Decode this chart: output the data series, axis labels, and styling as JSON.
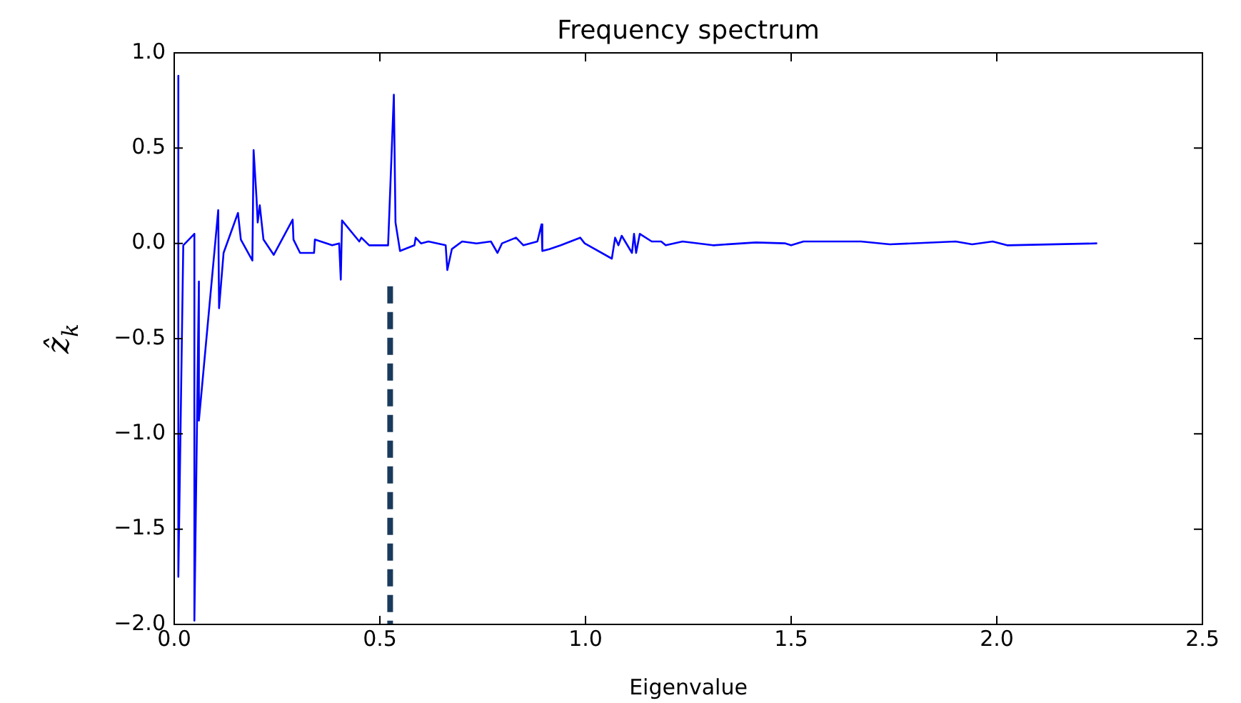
{
  "chart_data": {
    "type": "line",
    "title": "Frequency spectrum",
    "xlabel": "Eigenvalue",
    "ylabel": "ẑ$_{k}$",
    "xlim": [
      0,
      2.5
    ],
    "xticks": [
      {
        "value": 0,
        "label": "0.0"
      },
      0.5,
      {
        "value": 1,
        "label": "1.0"
      },
      1.5,
      {
        "value": 2,
        "label": "2.0"
      },
      2.5
    ],
    "ylim": [
      -2,
      1
    ],
    "yticks": [
      {
        "value": -2,
        "label": "−2.0"
      },
      {
        "value": -1.5,
        "label": "−1.5"
      },
      {
        "value": -1,
        "label": "−1.0"
      },
      {
        "value": -0.5,
        "label": "−0.5"
      },
      {
        "value": 0,
        "label": "0.0"
      },
      0.5,
      {
        "value": 1,
        "label": "1.0"
      }
    ],
    "grid": false,
    "legend": false,
    "series": [
      {
        "color": "#0000ff",
        "line_style": "solid",
        "x": [
          0.01,
          0.01,
          0.022,
          0.049,
          0.049,
          0.06,
          0.06,
          0.107,
          0.109,
          0.12,
          0.155,
          0.162,
          0.19,
          0.193,
          0.2,
          0.203,
          0.208,
          0.217,
          0.242,
          0.288,
          0.29,
          0.306,
          0.34,
          0.342,
          0.384,
          0.401,
          0.405,
          0.408,
          0.45,
          0.455,
          0.474,
          0.52,
          0.534,
          0.538,
          0.549,
          0.584,
          0.587,
          0.6,
          0.618,
          0.66,
          0.664,
          0.675,
          0.7,
          0.735,
          0.77,
          0.786,
          0.797,
          0.831,
          0.849,
          0.883,
          0.893,
          0.895,
          0.912,
          0.94,
          0.987,
          0.998,
          1.064,
          1.072,
          1.08,
          1.088,
          1.113,
          1.118,
          1.123,
          1.132,
          1.161,
          1.184,
          1.195,
          1.236,
          1.31,
          1.414,
          1.486,
          1.5,
          1.53,
          1.67,
          1.74,
          1.9,
          1.94,
          1.99,
          2.025,
          2.244
        ],
        "values": [
          0.88,
          -1.75,
          -0.01,
          0.05,
          -1.98,
          -0.2,
          -0.93,
          0.175,
          -0.34,
          -0.05,
          0.16,
          0.02,
          -0.09,
          0.49,
          0.24,
          0.11,
          0.2,
          0.02,
          -0.06,
          0.125,
          0.02,
          -0.05,
          -0.05,
          0.02,
          -0.01,
          0,
          -0.19,
          0.12,
          0.01,
          0.03,
          -0.01,
          -0.01,
          0.78,
          0.11,
          -0.04,
          -0.01,
          0.03,
          0,
          0.01,
          -0.01,
          -0.14,
          -0.03,
          0.01,
          0,
          0.01,
          -0.05,
          0,
          0.03,
          -0.01,
          0.01,
          0.1,
          -0.04,
          -0.03,
          -0.01,
          0.03,
          0,
          -0.08,
          0.03,
          -0.01,
          0.04,
          -0.05,
          0.05,
          -0.05,
          0.05,
          0.01,
          0.01,
          -0.01,
          0.01,
          -0.01,
          0.005,
          0,
          -0.01,
          0.01,
          0.01,
          -0.005,
          0.01,
          -0.005,
          0.01,
          -0.01,
          0
        ]
      },
      {
        "type": "line",
        "color": "#1a3a5c",
        "line_style": "dashed",
        "x": [
          0.525,
          0.525
        ],
        "values": [
          -0.225,
          -2
        ]
      }
    ]
  }
}
